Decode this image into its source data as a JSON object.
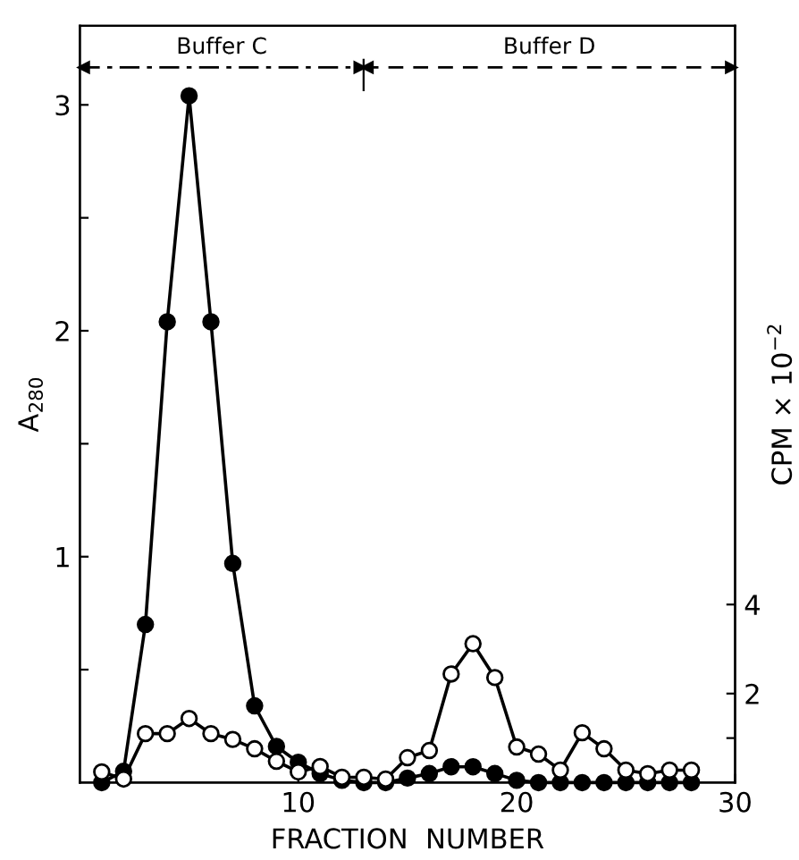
{
  "chart_data": {
    "type": "line",
    "xlabel": "FRACTION  NUMBER",
    "ylabel": "A$_{280}$",
    "y2label": "CPM × 10$^{−2}$",
    "x": [
      1,
      2,
      3,
      4,
      5,
      6,
      7,
      8,
      9,
      10,
      11,
      12,
      13,
      14,
      15,
      16,
      17,
      18,
      19,
      20,
      21,
      22,
      23,
      24,
      25,
      26,
      27,
      28
    ],
    "series": [
      {
        "color": "#000000",
        "values": [
          0,
          0.05,
          0.7,
          2.04,
          3.04,
          2.04,
          0.97,
          0.34,
          0.16,
          0.09,
          0.04,
          0.01,
          0,
          0,
          0.02,
          0.04,
          0.07,
          0.07,
          0.04,
          0.01,
          0,
          0,
          0,
          0,
          0,
          0,
          0,
          0
        ]
      },
      {
        "color": "#000000",
        "axis": "y2",
        "values": [
          0.24,
          0.08,
          1.1,
          1.1,
          1.44,
          1.1,
          0.97,
          0.76,
          0.48,
          0.24,
          0.36,
          0.12,
          0.12,
          0.08,
          0.56,
          0.72,
          2.44,
          3.12,
          2.36,
          0.8,
          0.64,
          0.28,
          1.12,
          0.76,
          0.28,
          0.2,
          0.28,
          0.28
        ]
      }
    ],
    "xlim": [
      0,
      30
    ],
    "xticks": [
      10,
      20,
      30
    ],
    "ylim": [
      0,
      3.35
    ],
    "yticks": [
      {
        "value": 0.5,
        "label": null
      },
      1,
      {
        "value": 1.5,
        "label": null
      },
      2,
      {
        "value": 2.5,
        "label": null
      },
      3
    ],
    "y2lim": [
      0,
      17
    ],
    "y2ticks": [
      {
        "value": 1,
        "label": null
      },
      2,
      4
    ],
    "annotations": [
      "Buffer C",
      "Buffer D"
    ],
    "marker": "circle",
    "grid": false,
    "legend": false
  }
}
